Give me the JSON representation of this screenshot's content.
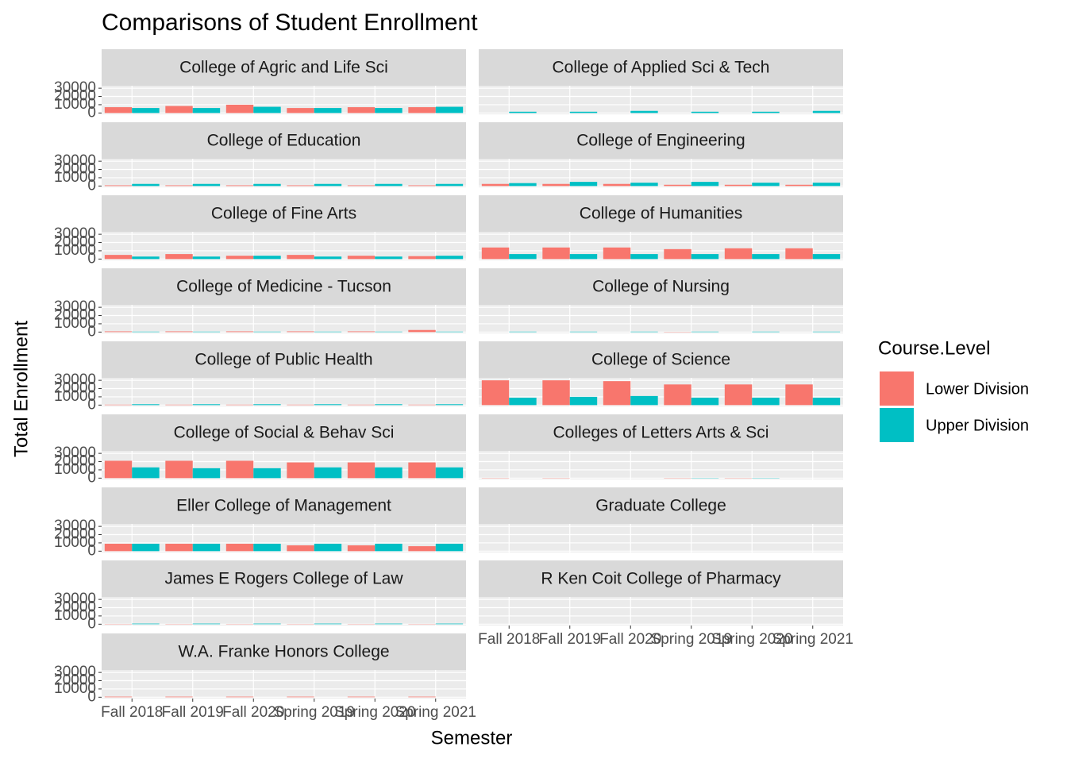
{
  "chart_data": {
    "type": "bar",
    "title": "Comparisons of Student Enrollment",
    "x_label": "Semester",
    "y_label": "Total Enrollment",
    "legend_title": "Course.Level",
    "series": [
      {
        "name": "Lower Division",
        "color": "#f8766d"
      },
      {
        "name": "Upper Division",
        "color": "#00bfc4"
      }
    ],
    "categories": [
      "Fall 2018",
      "Fall 2019",
      "Fall 2020",
      "Spring 2019",
      "Spring 2020",
      "Spring 2021"
    ],
    "ylim": [
      -1600,
      33000
    ],
    "yticks": [
      0,
      10000,
      20000,
      30000
    ],
    "grid": true,
    "facets": [
      {
        "title": "College of Agric and Life Sci",
        "series": [
          {
            "values": [
              7000,
              8500,
              10000,
              6000,
              7000,
              7000
            ]
          },
          {
            "values": [
              6000,
              6000,
              7500,
              6000,
              6000,
              7500
            ]
          }
        ]
      },
      {
        "title": "College of Applied Sci & Tech",
        "series": [
          {
            "values": [
              null,
              null,
              null,
              null,
              null,
              null
            ]
          },
          {
            "values": [
              1500,
              1500,
              2500,
              1500,
              1500,
              2500
            ]
          }
        ]
      },
      {
        "title": "College of Education",
        "series": [
          {
            "values": [
              800,
              800,
              800,
              800,
              800,
              800
            ]
          },
          {
            "values": [
              2500,
              2500,
              2500,
              2500,
              2500,
              2500
            ]
          }
        ]
      },
      {
        "title": "College of Engineering",
        "series": [
          {
            "values": [
              2500,
              2500,
              2500,
              1500,
              1500,
              1500
            ]
          },
          {
            "values": [
              3500,
              5000,
              4000,
              5000,
              4000,
              4000
            ]
          }
        ]
      },
      {
        "title": "College of Fine Arts",
        "series": [
          {
            "values": [
              5000,
              6000,
              4000,
              5000,
              4000,
              3500
            ]
          },
          {
            "values": [
              3000,
              3000,
              4000,
              3000,
              3000,
              4000
            ]
          }
        ]
      },
      {
        "title": "College of Humanities",
        "series": [
          {
            "values": [
              14000,
              14000,
              14000,
              12000,
              13000,
              13000
            ]
          },
          {
            "values": [
              6000,
              6000,
              6000,
              6000,
              6000,
              6000
            ]
          }
        ]
      },
      {
        "title": "College of Medicine - Tucson",
        "series": [
          {
            "values": [
              800,
              800,
              800,
              800,
              800,
              2500
            ]
          },
          {
            "values": [
              500,
              500,
              500,
              500,
              500,
              500
            ]
          }
        ]
      },
      {
        "title": "College of Nursing",
        "series": [
          {
            "values": [
              null,
              null,
              null,
              300,
              null,
              null
            ]
          },
          {
            "values": [
              500,
              500,
              500,
              500,
              500,
              500
            ]
          }
        ]
      },
      {
        "title": "College of Public Health",
        "series": [
          {
            "values": [
              500,
              500,
              500,
              500,
              500,
              500
            ]
          },
          {
            "values": [
              1000,
              1000,
              1000,
              1000,
              1000,
              1000
            ]
          }
        ]
      },
      {
        "title": "College of Science",
        "series": [
          {
            "values": [
              30000,
              30000,
              29000,
              25000,
              25000,
              25000
            ]
          },
          {
            "values": [
              9000,
              10000,
              11000,
              9000,
              9000,
              9000
            ]
          }
        ]
      },
      {
        "title": "College of Social & Behav Sci",
        "series": [
          {
            "values": [
              21000,
              21000,
              21000,
              19000,
              19000,
              19000
            ]
          },
          {
            "values": [
              13000,
              12000,
              12000,
              13000,
              13000,
              13000
            ]
          }
        ]
      },
      {
        "title": "Colleges of Letters Arts & Sci",
        "series": [
          {
            "values": [
              300,
              300,
              null,
              300,
              300,
              null
            ]
          },
          {
            "values": [
              null,
              null,
              null,
              300,
              300,
              null
            ]
          }
        ]
      },
      {
        "title": "Eller College of Management",
        "series": [
          {
            "values": [
              9000,
              9000,
              9000,
              7000,
              7000,
              6000
            ]
          },
          {
            "values": [
              9000,
              9000,
              9000,
              9000,
              9000,
              9000
            ]
          }
        ]
      },
      {
        "title": "Graduate College",
        "series": [
          {
            "values": [
              null,
              null,
              null,
              null,
              null,
              null
            ]
          },
          {
            "values": [
              null,
              null,
              null,
              null,
              null,
              null
            ]
          }
        ]
      },
      {
        "title": "James E Rogers College of Law",
        "series": [
          {
            "values": [
              300,
              300,
              300,
              300,
              300,
              300
            ]
          },
          {
            "values": [
              700,
              700,
              700,
              700,
              700,
              700
            ]
          }
        ]
      },
      {
        "title": "R Ken Coit College of Pharmacy",
        "series": [
          {
            "values": [
              null,
              null,
              null,
              null,
              null,
              null
            ]
          },
          {
            "values": [
              null,
              null,
              null,
              null,
              null,
              null
            ]
          }
        ]
      },
      {
        "title": "W.A. Franke Honors College",
        "series": [
          {
            "values": [
              700,
              700,
              700,
              700,
              700,
              700
            ]
          },
          {
            "values": [
              null,
              null,
              null,
              null,
              null,
              null
            ]
          }
        ]
      }
    ]
  }
}
